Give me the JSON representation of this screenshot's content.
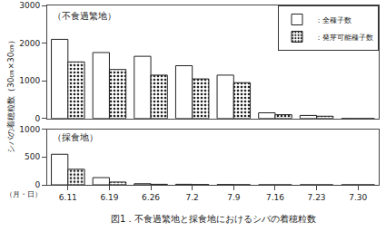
{
  "chart_data": [
    {
      "type": "bar",
      "title": "（不食過繁地）",
      "ylabel": "シバの着穂粒数（30㎝×30㎝）",
      "categories": [
        "6.11",
        "6.19",
        "6.26",
        "7.2",
        "7.9",
        "7.16",
        "7.23",
        "7.30"
      ],
      "series": [
        {
          "name": "：全種子数",
          "color": "#ffffff",
          "values": [
            2100,
            1750,
            1650,
            1400,
            1150,
            150,
            80,
            0
          ]
        },
        {
          "name": "：発芽可能種子数",
          "color": "#ffffff",
          "values": [
            1500,
            1300,
            1150,
            1050,
            950,
            100,
            60,
            0
          ]
        }
      ],
      "ylim": [
        0,
        3000
      ],
      "yticks": [
        0,
        1000,
        2000,
        3000
      ],
      "grid": false,
      "legend": "upper right",
      "tick_labels": "y"
    },
    {
      "type": "bar",
      "title": "（採食地）",
      "xlabel": "（月・日）",
      "categories": [
        "6.11",
        "6.19",
        "6.26",
        "7.2",
        "7.9",
        "7.16",
        "7.23",
        "7.30"
      ],
      "series": [
        {
          "name": "：全種子数",
          "color": "#ffffff",
          "values": [
            550,
            130,
            20,
            10,
            5,
            0,
            0,
            0
          ]
        },
        {
          "name": "：発芽可能種子数",
          "color": "#ffffff",
          "values": [
            280,
            50,
            10,
            5,
            2,
            0,
            0,
            0
          ]
        }
      ],
      "ylim": [
        0,
        1000
      ],
      "yticks": [
        0,
        500,
        1000
      ],
      "grid": false,
      "annotations": [
        "図1．不食過繁地と採食地におけるシバの着穂粒数"
      ]
    }
  ]
}
